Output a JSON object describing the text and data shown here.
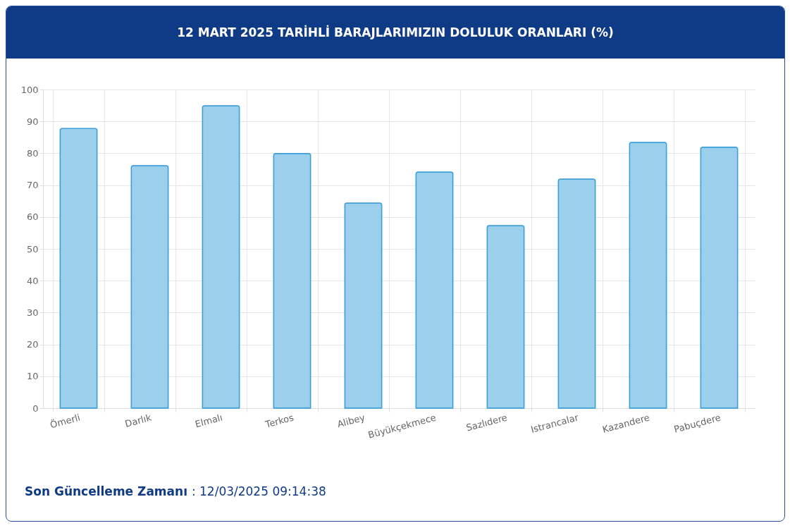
{
  "chart_data": {
    "type": "bar",
    "title": "12 MART 2025 TARİHLİ BARAJLARIMIZIN DOLULUK ORANLARI (%)",
    "categories": [
      "Ömerli",
      "Darlık",
      "Elmalı",
      "Terkos",
      "Alibey",
      "Büyükçekmece",
      "Sazlıdere",
      "Istrancalar",
      "Kazandere",
      "Pabuçdere"
    ],
    "values": [
      87.8,
      76.1,
      94.9,
      79.9,
      64.4,
      74.1,
      57.3,
      71.9,
      83.4,
      81.9
    ],
    "color": "#9bcfeb",
    "ylim": [
      0,
      100
    ],
    "yticks": [
      0,
      10,
      20,
      30,
      40,
      50,
      60,
      70,
      80,
      90,
      100
    ],
    "grid": true,
    "annotations": [
      "Son Güncelleme Zamanı : 12/03/2025 09:14:38"
    ]
  }
}
